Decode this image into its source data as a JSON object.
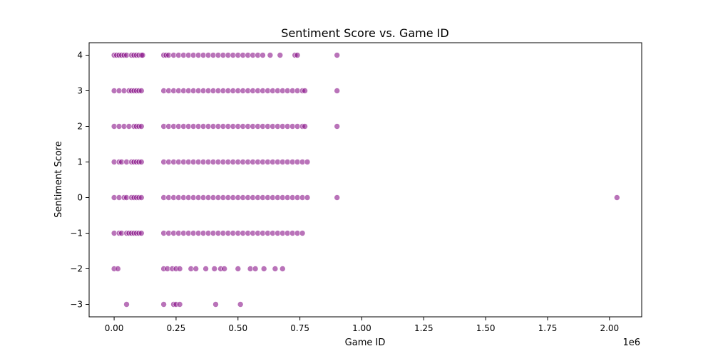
{
  "chart_data": {
    "type": "scatter",
    "title": "Sentiment Score vs. Game ID",
    "xlabel": "Game ID",
    "ylabel": "Sentiment Score",
    "x_offset_label": "1e6",
    "xlim": [
      -0.101,
      2.13
    ],
    "ylim": [
      -3.35,
      4.35
    ],
    "x_ticks": [
      {
        "value": 0.0,
        "label": "0.00"
      },
      {
        "value": 0.25,
        "label": "0.25"
      },
      {
        "value": 0.5,
        "label": "0.50"
      },
      {
        "value": 0.75,
        "label": "0.75"
      },
      {
        "value": 1.0,
        "label": "1.00"
      },
      {
        "value": 1.25,
        "label": "1.25"
      },
      {
        "value": 1.5,
        "label": "1.50"
      },
      {
        "value": 1.75,
        "label": "1.75"
      },
      {
        "value": 2.0,
        "label": "2.00"
      }
    ],
    "y_ticks": [
      {
        "value": -3,
        "label": "−3"
      },
      {
        "value": -2,
        "label": "−2"
      },
      {
        "value": -1,
        "label": "−1"
      },
      {
        "value": 0,
        "label": "0"
      },
      {
        "value": 1,
        "label": "1"
      },
      {
        "value": 2,
        "label": "2"
      },
      {
        "value": 3,
        "label": "3"
      },
      {
        "value": 4,
        "label": "4"
      }
    ],
    "grid": false,
    "legend": "none",
    "marker_color": "#800080",
    "marker_edge_color": "#ffffff",
    "marker_opacity": 0.55,
    "series": [
      {
        "points": [
          [
            0.0,
            4
          ],
          [
            0.01,
            4
          ],
          [
            0.02,
            4
          ],
          [
            0.03,
            4
          ],
          [
            0.04,
            4
          ],
          [
            0.05,
            4
          ],
          [
            0.07,
            4
          ],
          [
            0.08,
            4
          ],
          [
            0.09,
            4
          ],
          [
            0.1,
            4
          ],
          [
            0.11,
            4
          ],
          [
            0.115,
            4
          ],
          [
            0.2,
            4
          ],
          [
            0.21,
            4
          ],
          [
            0.22,
            4
          ],
          [
            0.24,
            4
          ],
          [
            0.26,
            4
          ],
          [
            0.28,
            4
          ],
          [
            0.3,
            4
          ],
          [
            0.32,
            4
          ],
          [
            0.34,
            4
          ],
          [
            0.36,
            4
          ],
          [
            0.38,
            4
          ],
          [
            0.4,
            4
          ],
          [
            0.42,
            4
          ],
          [
            0.44,
            4
          ],
          [
            0.46,
            4
          ],
          [
            0.48,
            4
          ],
          [
            0.5,
            4
          ],
          [
            0.52,
            4
          ],
          [
            0.54,
            4
          ],
          [
            0.56,
            4
          ],
          [
            0.58,
            4
          ],
          [
            0.6,
            4
          ],
          [
            0.63,
            4
          ],
          [
            0.67,
            4
          ],
          [
            0.73,
            4
          ],
          [
            0.74,
            4
          ],
          [
            0.9,
            4
          ],
          [
            0.0,
            3
          ],
          [
            0.02,
            3
          ],
          [
            0.04,
            3
          ],
          [
            0.06,
            3
          ],
          [
            0.07,
            3
          ],
          [
            0.08,
            3
          ],
          [
            0.09,
            3
          ],
          [
            0.1,
            3
          ],
          [
            0.11,
            3
          ],
          [
            0.2,
            3
          ],
          [
            0.22,
            3
          ],
          [
            0.24,
            3
          ],
          [
            0.26,
            3
          ],
          [
            0.28,
            3
          ],
          [
            0.3,
            3
          ],
          [
            0.32,
            3
          ],
          [
            0.34,
            3
          ],
          [
            0.36,
            3
          ],
          [
            0.38,
            3
          ],
          [
            0.4,
            3
          ],
          [
            0.42,
            3
          ],
          [
            0.44,
            3
          ],
          [
            0.46,
            3
          ],
          [
            0.48,
            3
          ],
          [
            0.5,
            3
          ],
          [
            0.52,
            3
          ],
          [
            0.54,
            3
          ],
          [
            0.56,
            3
          ],
          [
            0.58,
            3
          ],
          [
            0.6,
            3
          ],
          [
            0.62,
            3
          ],
          [
            0.64,
            3
          ],
          [
            0.66,
            3
          ],
          [
            0.68,
            3
          ],
          [
            0.7,
            3
          ],
          [
            0.72,
            3
          ],
          [
            0.74,
            3
          ],
          [
            0.76,
            3
          ],
          [
            0.77,
            3
          ],
          [
            0.9,
            3
          ],
          [
            0.0,
            2
          ],
          [
            0.02,
            2
          ],
          [
            0.04,
            2
          ],
          [
            0.06,
            2
          ],
          [
            0.08,
            2
          ],
          [
            0.09,
            2
          ],
          [
            0.1,
            2
          ],
          [
            0.11,
            2
          ],
          [
            0.2,
            2
          ],
          [
            0.22,
            2
          ],
          [
            0.24,
            2
          ],
          [
            0.26,
            2
          ],
          [
            0.28,
            2
          ],
          [
            0.3,
            2
          ],
          [
            0.32,
            2
          ],
          [
            0.34,
            2
          ],
          [
            0.36,
            2
          ],
          [
            0.38,
            2
          ],
          [
            0.4,
            2
          ],
          [
            0.42,
            2
          ],
          [
            0.44,
            2
          ],
          [
            0.46,
            2
          ],
          [
            0.48,
            2
          ],
          [
            0.5,
            2
          ],
          [
            0.52,
            2
          ],
          [
            0.54,
            2
          ],
          [
            0.56,
            2
          ],
          [
            0.58,
            2
          ],
          [
            0.6,
            2
          ],
          [
            0.62,
            2
          ],
          [
            0.64,
            2
          ],
          [
            0.66,
            2
          ],
          [
            0.68,
            2
          ],
          [
            0.7,
            2
          ],
          [
            0.72,
            2
          ],
          [
            0.74,
            2
          ],
          [
            0.76,
            2
          ],
          [
            0.77,
            2
          ],
          [
            0.9,
            2
          ],
          [
            0.0,
            1
          ],
          [
            0.02,
            1
          ],
          [
            0.03,
            1
          ],
          [
            0.05,
            1
          ],
          [
            0.07,
            1
          ],
          [
            0.08,
            1
          ],
          [
            0.09,
            1
          ],
          [
            0.1,
            1
          ],
          [
            0.11,
            1
          ],
          [
            0.2,
            1
          ],
          [
            0.22,
            1
          ],
          [
            0.24,
            1
          ],
          [
            0.26,
            1
          ],
          [
            0.28,
            1
          ],
          [
            0.3,
            1
          ],
          [
            0.32,
            1
          ],
          [
            0.34,
            1
          ],
          [
            0.36,
            1
          ],
          [
            0.38,
            1
          ],
          [
            0.4,
            1
          ],
          [
            0.42,
            1
          ],
          [
            0.44,
            1
          ],
          [
            0.46,
            1
          ],
          [
            0.48,
            1
          ],
          [
            0.5,
            1
          ],
          [
            0.52,
            1
          ],
          [
            0.54,
            1
          ],
          [
            0.56,
            1
          ],
          [
            0.58,
            1
          ],
          [
            0.6,
            1
          ],
          [
            0.62,
            1
          ],
          [
            0.64,
            1
          ],
          [
            0.66,
            1
          ],
          [
            0.68,
            1
          ],
          [
            0.7,
            1
          ],
          [
            0.72,
            1
          ],
          [
            0.74,
            1
          ],
          [
            0.76,
            1
          ],
          [
            0.78,
            1
          ],
          [
            0.0,
            0
          ],
          [
            0.02,
            0
          ],
          [
            0.04,
            0
          ],
          [
            0.05,
            0
          ],
          [
            0.07,
            0
          ],
          [
            0.08,
            0
          ],
          [
            0.09,
            0
          ],
          [
            0.1,
            0
          ],
          [
            0.11,
            0
          ],
          [
            0.2,
            0
          ],
          [
            0.22,
            0
          ],
          [
            0.24,
            0
          ],
          [
            0.26,
            0
          ],
          [
            0.28,
            0
          ],
          [
            0.3,
            0
          ],
          [
            0.32,
            0
          ],
          [
            0.34,
            0
          ],
          [
            0.36,
            0
          ],
          [
            0.38,
            0
          ],
          [
            0.4,
            0
          ],
          [
            0.42,
            0
          ],
          [
            0.44,
            0
          ],
          [
            0.46,
            0
          ],
          [
            0.48,
            0
          ],
          [
            0.5,
            0
          ],
          [
            0.52,
            0
          ],
          [
            0.54,
            0
          ],
          [
            0.56,
            0
          ],
          [
            0.58,
            0
          ],
          [
            0.6,
            0
          ],
          [
            0.62,
            0
          ],
          [
            0.64,
            0
          ],
          [
            0.66,
            0
          ],
          [
            0.68,
            0
          ],
          [
            0.7,
            0
          ],
          [
            0.72,
            0
          ],
          [
            0.74,
            0
          ],
          [
            0.76,
            0
          ],
          [
            0.78,
            0
          ],
          [
            0.9,
            0
          ],
          [
            2.03,
            0
          ],
          [
            0.0,
            -1
          ],
          [
            0.02,
            -1
          ],
          [
            0.03,
            -1
          ],
          [
            0.05,
            -1
          ],
          [
            0.06,
            -1
          ],
          [
            0.07,
            -1
          ],
          [
            0.08,
            -1
          ],
          [
            0.09,
            -1
          ],
          [
            0.1,
            -1
          ],
          [
            0.11,
            -1
          ],
          [
            0.2,
            -1
          ],
          [
            0.22,
            -1
          ],
          [
            0.24,
            -1
          ],
          [
            0.26,
            -1
          ],
          [
            0.28,
            -1
          ],
          [
            0.3,
            -1
          ],
          [
            0.32,
            -1
          ],
          [
            0.34,
            -1
          ],
          [
            0.36,
            -1
          ],
          [
            0.38,
            -1
          ],
          [
            0.4,
            -1
          ],
          [
            0.42,
            -1
          ],
          [
            0.44,
            -1
          ],
          [
            0.46,
            -1
          ],
          [
            0.48,
            -1
          ],
          [
            0.5,
            -1
          ],
          [
            0.52,
            -1
          ],
          [
            0.54,
            -1
          ],
          [
            0.56,
            -1
          ],
          [
            0.58,
            -1
          ],
          [
            0.6,
            -1
          ],
          [
            0.62,
            -1
          ],
          [
            0.64,
            -1
          ],
          [
            0.66,
            -1
          ],
          [
            0.68,
            -1
          ],
          [
            0.7,
            -1
          ],
          [
            0.72,
            -1
          ],
          [
            0.74,
            -1
          ],
          [
            0.76,
            -1
          ],
          [
            0.0,
            -2
          ],
          [
            0.015,
            -2
          ],
          [
            0.2,
            -2
          ],
          [
            0.215,
            -2
          ],
          [
            0.235,
            -2
          ],
          [
            0.25,
            -2
          ],
          [
            0.265,
            -2
          ],
          [
            0.31,
            -2
          ],
          [
            0.33,
            -2
          ],
          [
            0.37,
            -2
          ],
          [
            0.405,
            -2
          ],
          [
            0.43,
            -2
          ],
          [
            0.445,
            -2
          ],
          [
            0.5,
            -2
          ],
          [
            0.55,
            -2
          ],
          [
            0.57,
            -2
          ],
          [
            0.605,
            -2
          ],
          [
            0.65,
            -2
          ],
          [
            0.68,
            -2
          ],
          [
            0.05,
            -3
          ],
          [
            0.2,
            -3
          ],
          [
            0.24,
            -3
          ],
          [
            0.25,
            -3
          ],
          [
            0.265,
            -3
          ],
          [
            0.41,
            -3
          ],
          [
            0.51,
            -3
          ]
        ]
      }
    ]
  }
}
